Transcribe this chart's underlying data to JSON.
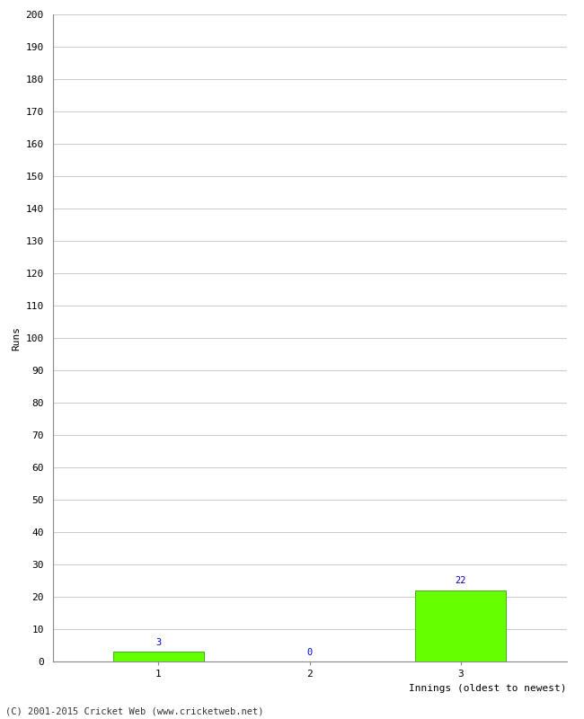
{
  "categories": [
    "1",
    "2",
    "3"
  ],
  "values": [
    3,
    0,
    22
  ],
  "bar_color": "#66ff00",
  "bar_edge_color": "#228800",
  "xlabel": "Innings (oldest to newest)",
  "ylabel": "Runs",
  "ylim": [
    0,
    200
  ],
  "yticks": [
    0,
    10,
    20,
    30,
    40,
    50,
    60,
    70,
    80,
    90,
    100,
    110,
    120,
    130,
    140,
    150,
    160,
    170,
    180,
    190,
    200
  ],
  "label_color": "#0000cc",
  "label_fontsize": 7.5,
  "axis_fontsize": 8,
  "tick_fontsize": 8,
  "footer": "(C) 2001-2015 Cricket Web (www.cricketweb.net)",
  "footer_fontsize": 7.5,
  "background_color": "#ffffff",
  "grid_color": "#cccccc",
  "spine_color": "#888888"
}
